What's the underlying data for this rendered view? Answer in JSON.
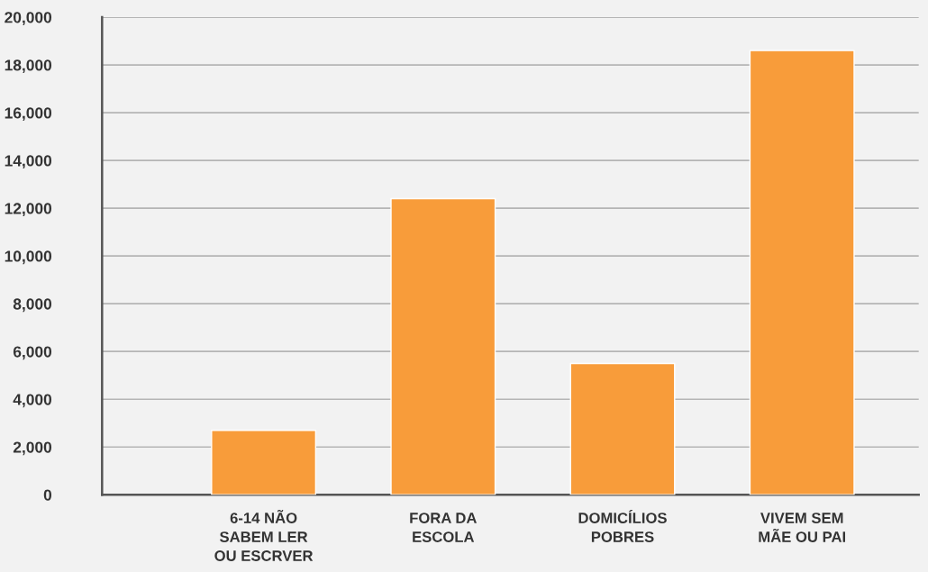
{
  "chart_data": {
    "type": "bar",
    "categories": [
      "6-14 NÃO\nSABEM LER\nOU ESCRVER",
      "FORA DA\nESCOLA",
      "DOMICÍLIOS\nPOBRES",
      "VIVEM SEM\nMÃE OU PAI"
    ],
    "values": [
      2700,
      12400,
      5500,
      18600
    ],
    "color": "#f89c3a",
    "ylim": [
      0,
      20000
    ],
    "yticks": [
      {
        "value": 0,
        "label": "0"
      },
      {
        "value": 2000,
        "label": "2,000"
      },
      {
        "value": 4000,
        "label": "4,000"
      },
      {
        "value": 6000,
        "label": "6,000"
      },
      {
        "value": 8000,
        "label": "8,000"
      },
      {
        "value": 10000,
        "label": "10,000"
      },
      {
        "value": 12000,
        "label": "12,000"
      },
      {
        "value": 14000,
        "label": "14,000"
      },
      {
        "value": 16000,
        "label": "16,000"
      },
      {
        "value": 18000,
        "label": "18,000"
      },
      {
        "value": 20000,
        "label": "20,000"
      }
    ],
    "grid": "y"
  }
}
